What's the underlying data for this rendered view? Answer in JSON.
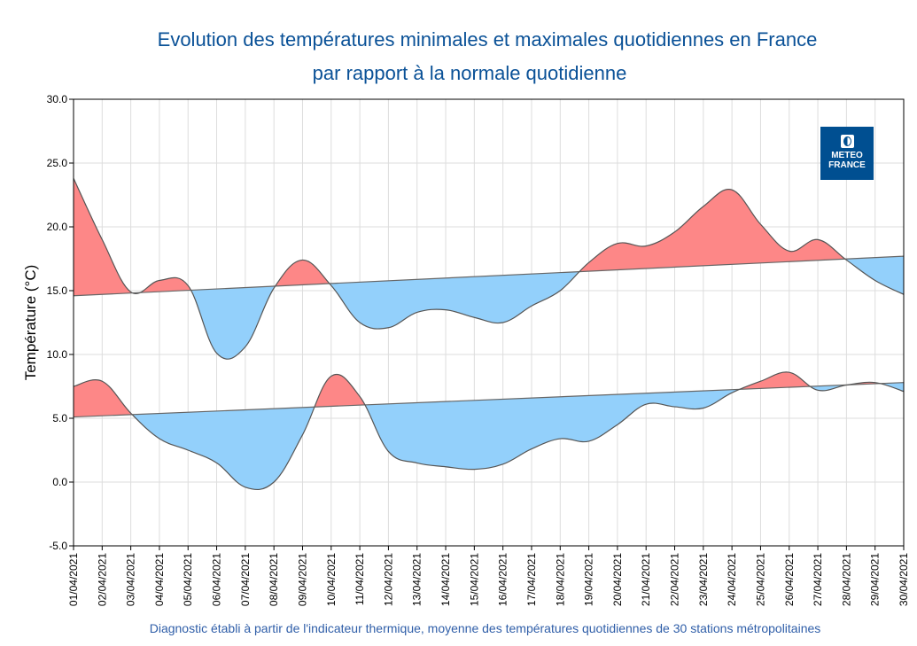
{
  "chart_data": {
    "type": "area",
    "title": "Evolution des températures minimales et maximales quotidiennes en France",
    "subtitle": "par rapport à la normale quotidienne",
    "ylabel": "Température (°C)",
    "xlabel": "",
    "footer": "Diagnostic établi à partir de l'indicateur thermique, moyenne des températures quotidiennes de 30 stations métropolitaines",
    "ylim": [
      -5,
      30
    ],
    "yticks": [
      "30.0",
      "25.0",
      "20.0",
      "15.0",
      "10.0",
      "5.0",
      "0.0",
      "-5.0"
    ],
    "grid": true,
    "categories": [
      "01/04/2021",
      "02/04/2021",
      "03/04/2021",
      "04/04/2021",
      "05/04/2021",
      "06/04/2021",
      "07/04/2021",
      "08/04/2021",
      "09/04/2021",
      "10/04/2021",
      "11/04/2021",
      "12/04/2021",
      "13/04/2021",
      "14/04/2021",
      "15/04/2021",
      "16/04/2021",
      "17/04/2021",
      "18/04/2021",
      "19/04/2021",
      "20/04/2021",
      "21/04/2021",
      "22/04/2021",
      "23/04/2021",
      "24/04/2021",
      "25/04/2021",
      "26/04/2021",
      "27/04/2021",
      "28/04/2021",
      "29/04/2021",
      "30/04/2021"
    ],
    "series": [
      {
        "values": [
          23.8,
          19.0,
          14.9,
          15.8,
          15.4,
          10.1,
          10.6,
          15.2,
          17.4,
          15.4,
          12.5,
          12.1,
          13.3,
          13.5,
          12.9,
          12.5,
          13.8,
          15.0,
          17.2,
          18.7,
          18.5,
          19.6,
          21.6,
          22.9,
          20.2,
          18.1,
          19.0,
          17.4,
          15.8,
          14.7
        ],
        "normal": [
          14.6,
          17.7
        ]
      },
      {
        "values": [
          7.5,
          7.9,
          5.4,
          3.4,
          2.5,
          1.5,
          -0.4,
          0.0,
          3.7,
          8.3,
          6.7,
          2.4,
          1.5,
          1.2,
          1.0,
          1.4,
          2.6,
          3.4,
          3.2,
          4.5,
          6.1,
          5.9,
          5.8,
          7.0,
          7.9,
          8.6,
          7.2,
          7.6,
          7.8,
          7.1
        ],
        "normal": [
          5.1,
          7.8
        ]
      }
    ],
    "colors": {
      "above": "#fd8787",
      "below": "#93d0fb",
      "line": "#555555",
      "title": "#0a5197",
      "footer": "#2f5ea8"
    }
  },
  "logo": {
    "text_line1": "METEO",
    "text_line2": "FRANCE",
    "color": "#004f91"
  }
}
